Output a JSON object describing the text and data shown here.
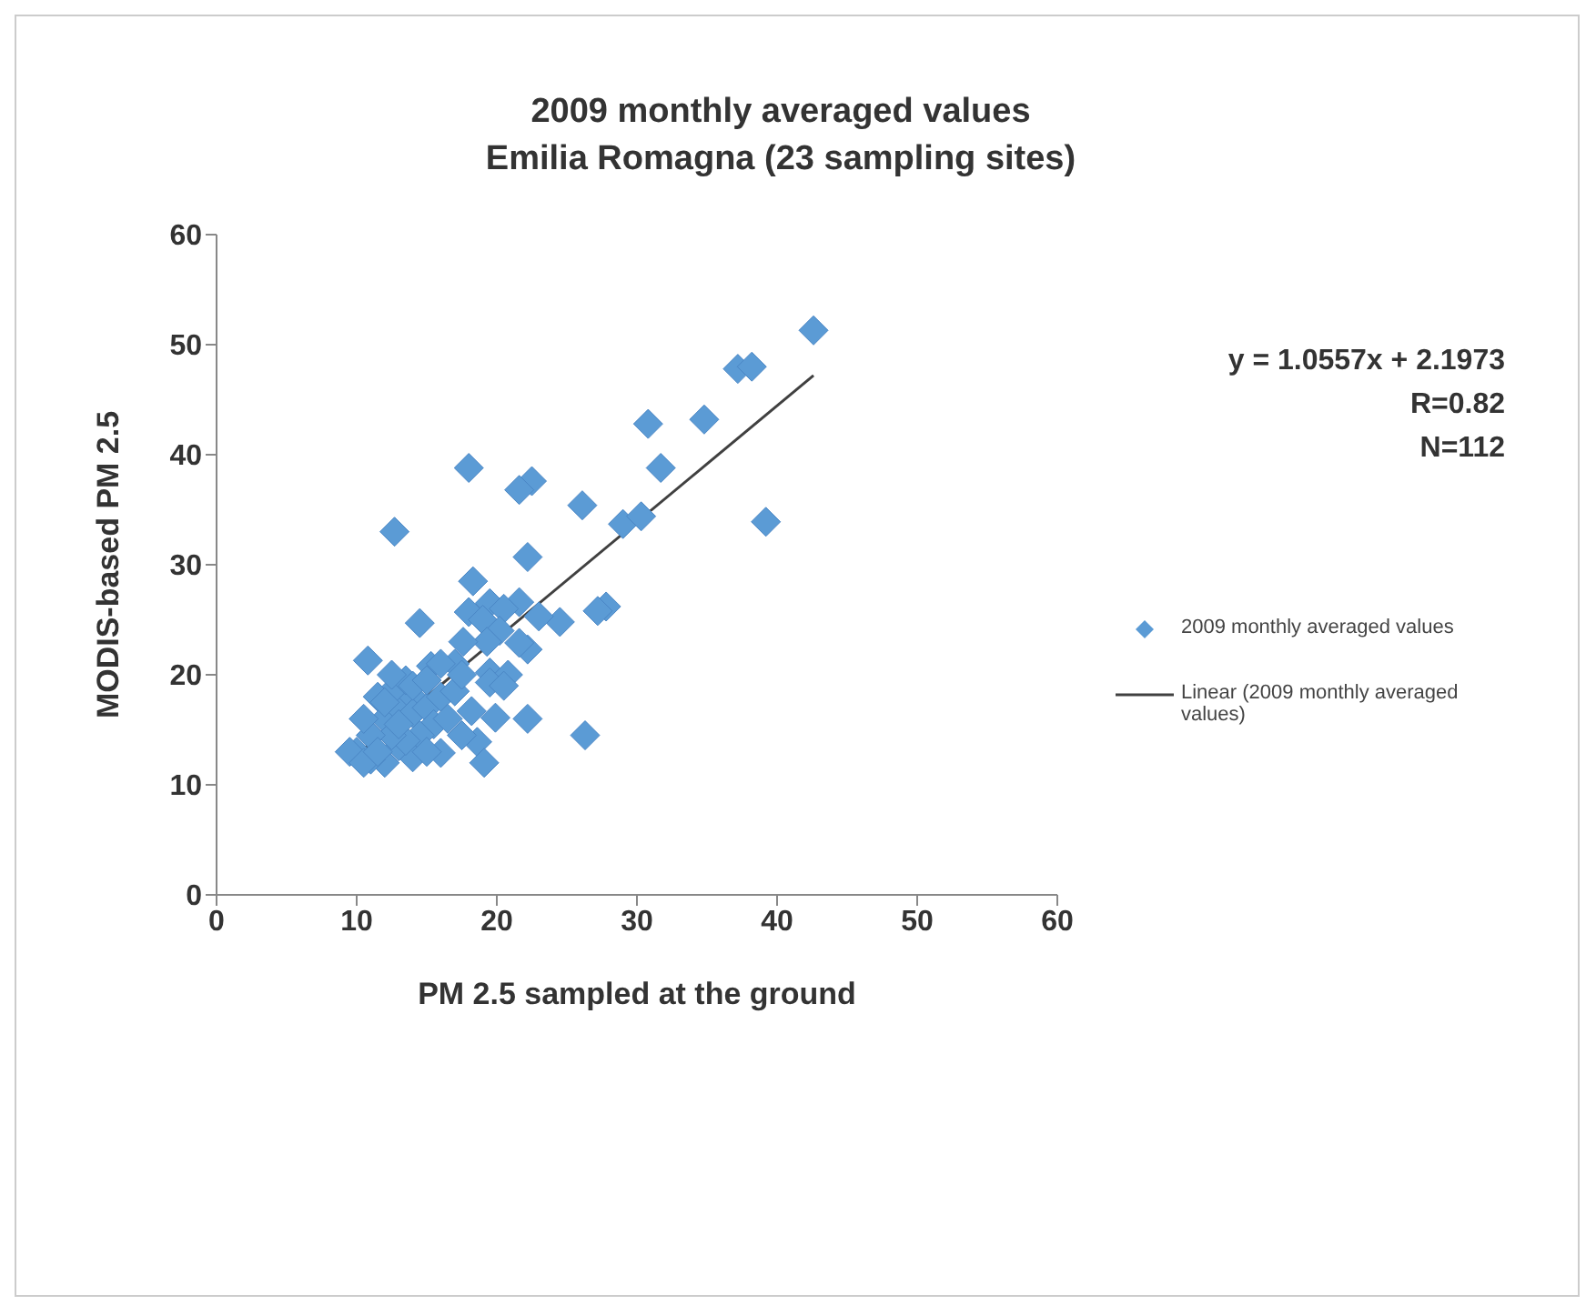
{
  "chart_data": {
    "type": "scatter",
    "title": "2009 monthly averaged values\nEmilia Romagna (23 sampling sites)",
    "xlabel": "PM 2.5 sampled at the ground",
    "ylabel": "MODIS-based PM 2.5",
    "xlim": [
      0,
      60
    ],
    "xticks": [
      0,
      10,
      20,
      30,
      40,
      50,
      60
    ],
    "ylim": [
      0,
      60
    ],
    "yticks": [
      0,
      10,
      20,
      30,
      40,
      50,
      60
    ],
    "legend": "right",
    "annotations": [
      "y = 1.0557x + 2.1973",
      "R=0.82",
      "N=112"
    ],
    "series": [
      {
        "name": "2009 monthly averaged values",
        "color": "#5b9bd5",
        "marker": "diamond",
        "x": [
          42.6,
          37.2,
          38.2,
          30.8,
          34.8,
          31.7,
          18,
          22.5,
          21.6,
          26.1,
          12.7,
          29,
          30.3,
          39.2,
          22.2,
          18.3,
          21.6,
          27.8,
          27.2,
          24.5,
          23,
          19.5,
          20.5,
          18,
          19,
          20.2,
          14.5,
          22.2,
          21.6,
          19.3,
          17.6,
          17,
          15.3,
          19.5,
          20.8,
          19.5,
          20.5,
          10.8,
          22.2,
          19.9,
          18.2,
          26.3,
          18.6,
          19.1,
          16,
          14,
          13,
          12,
          11,
          10,
          9.5,
          12,
          13,
          14,
          12.5,
          11.5,
          13.5,
          14,
          15,
          16,
          17,
          15.5,
          14.5,
          13.5,
          12.5,
          11,
          10.5,
          12,
          16.5,
          17.5,
          15,
          10.5,
          11.5,
          13,
          14,
          16,
          12.5,
          15,
          17.5
        ],
        "values": [
          51.3,
          47.8,
          48,
          42.8,
          43.2,
          38.8,
          38.8,
          37.6,
          36.8,
          35.4,
          33,
          33.7,
          34.4,
          33.9,
          30.7,
          28.5,
          26.6,
          26.2,
          25.8,
          24.8,
          25.3,
          26.5,
          26,
          25.7,
          25,
          24,
          24.7,
          22.3,
          22.9,
          23,
          23,
          21,
          20.8,
          20.2,
          20,
          19.3,
          19,
          21.3,
          16,
          16.1,
          16.7,
          14.5,
          13.9,
          12,
          12.9,
          12.5,
          13.5,
          12,
          12.3,
          13,
          13,
          16,
          17,
          18,
          18.5,
          18,
          19.5,
          16.5,
          17,
          18,
          18.5,
          15.5,
          14.5,
          14,
          14.5,
          14.5,
          16,
          17.5,
          16,
          14.5,
          13,
          12,
          13,
          15.5,
          19,
          21,
          20,
          19.5,
          20
        ]
      },
      {
        "name": "Linear (2009 monthly averaged values)",
        "color": "#404040",
        "type": "line",
        "marker": "none",
        "x": [
          9.5,
          42.6
        ],
        "values": [
          12.2,
          47.2
        ]
      }
    ]
  }
}
